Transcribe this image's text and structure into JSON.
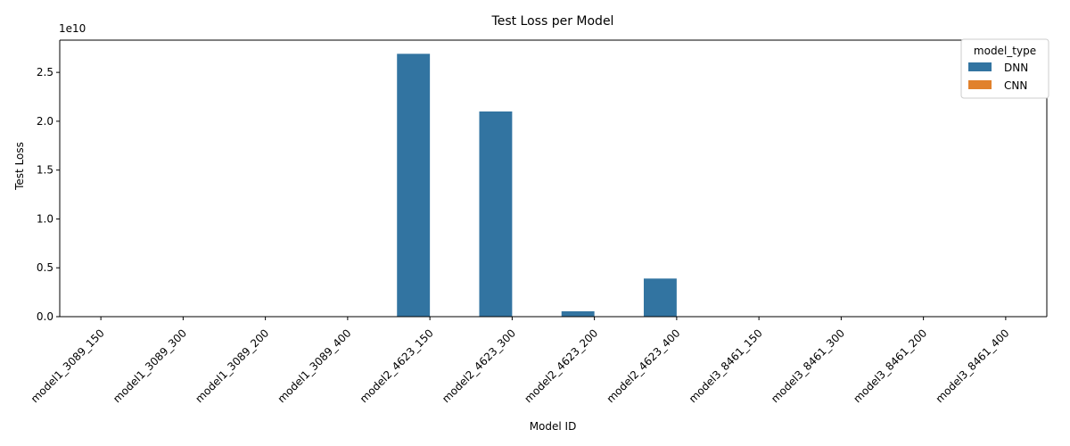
{
  "chart_data": {
    "type": "bar",
    "title": "Test Loss per Model",
    "xlabel": "Model ID",
    "ylabel": "Test Loss",
    "y_offset_text": "1e10",
    "ylim": [
      0,
      2.83
    ],
    "y_ticks": [
      0.0,
      0.5,
      1.0,
      1.5,
      2.0,
      2.5
    ],
    "y_tick_labels": [
      "0.0",
      "0.5",
      "1.0",
      "1.5",
      "2.0",
      "2.5"
    ],
    "categories": [
      "model1_3089_150",
      "model1_3089_300",
      "model1_3089_200",
      "model1_3089_400",
      "model2_4623_150",
      "model2_4623_300",
      "model2_4623_200",
      "model2_4623_400",
      "model3_8461_150",
      "model3_8461_300",
      "model3_8461_200",
      "model3_8461_400"
    ],
    "series": [
      {
        "name": "DNN",
        "color": "#3274a1",
        "values": [
          0,
          0,
          0,
          0,
          2.69,
          2.1,
          0.055,
          0.39,
          0,
          0,
          0,
          0
        ]
      },
      {
        "name": "CNN",
        "color": "#e1812c",
        "values": [
          0,
          0,
          0,
          0,
          0,
          0,
          0,
          0,
          0,
          0,
          0,
          0
        ]
      }
    ],
    "legend": {
      "title": "model_type",
      "position": "top-right"
    },
    "grid": false
  }
}
